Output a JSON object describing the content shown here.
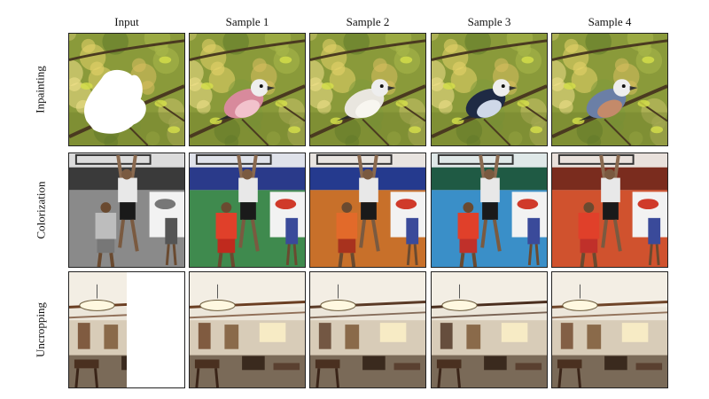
{
  "columns": [
    {
      "label": "Input"
    },
    {
      "label": "Sample 1"
    },
    {
      "label": "Sample 2"
    },
    {
      "label": "Sample 3"
    },
    {
      "label": "Sample 4"
    }
  ],
  "rows": [
    {
      "label": "Inpainting",
      "task": "inpainting"
    },
    {
      "label": "Colorization",
      "task": "colorization"
    },
    {
      "label": "Uncropping",
      "task": "uncropping"
    }
  ],
  "inpainting": {
    "bird_colors": [
      "",
      "#d88a9c",
      "#e9e6df",
      "#1f2a44",
      "#6b7fa6"
    ],
    "bird_belly": [
      "",
      "#f2c2cc",
      "#f8f6f0",
      "#cfd8e8",
      "#c48a6a"
    ]
  },
  "colorization": {
    "wall_top": [
      "#dcdcdc",
      "#dfe2ea",
      "#e8e4e0",
      "#dfe8e8",
      "#e9e1dc"
    ],
    "band": [
      "#3a3a3a",
      "#2a3a8a",
      "#253a8e",
      "#1f5a44",
      "#7a2c1e"
    ],
    "floor": [
      "#8a8a8a",
      "#3f8a4e",
      "#c8702a",
      "#3a8fc8",
      "#d0522e"
    ],
    "jersey": [
      "#bdbdbd",
      "#e0402a",
      "#e26a2a",
      "#e0402a",
      "#e0402a"
    ],
    "shorts": [
      "#777777",
      "#c02a1e",
      "#a8321e",
      "#c0302a",
      "#c0302a"
    ]
  },
  "uncropping": {
    "accent": [
      "",
      "#6a3e22",
      "#5a3a26",
      "#4a2e1e",
      "#6e4428"
    ]
  }
}
